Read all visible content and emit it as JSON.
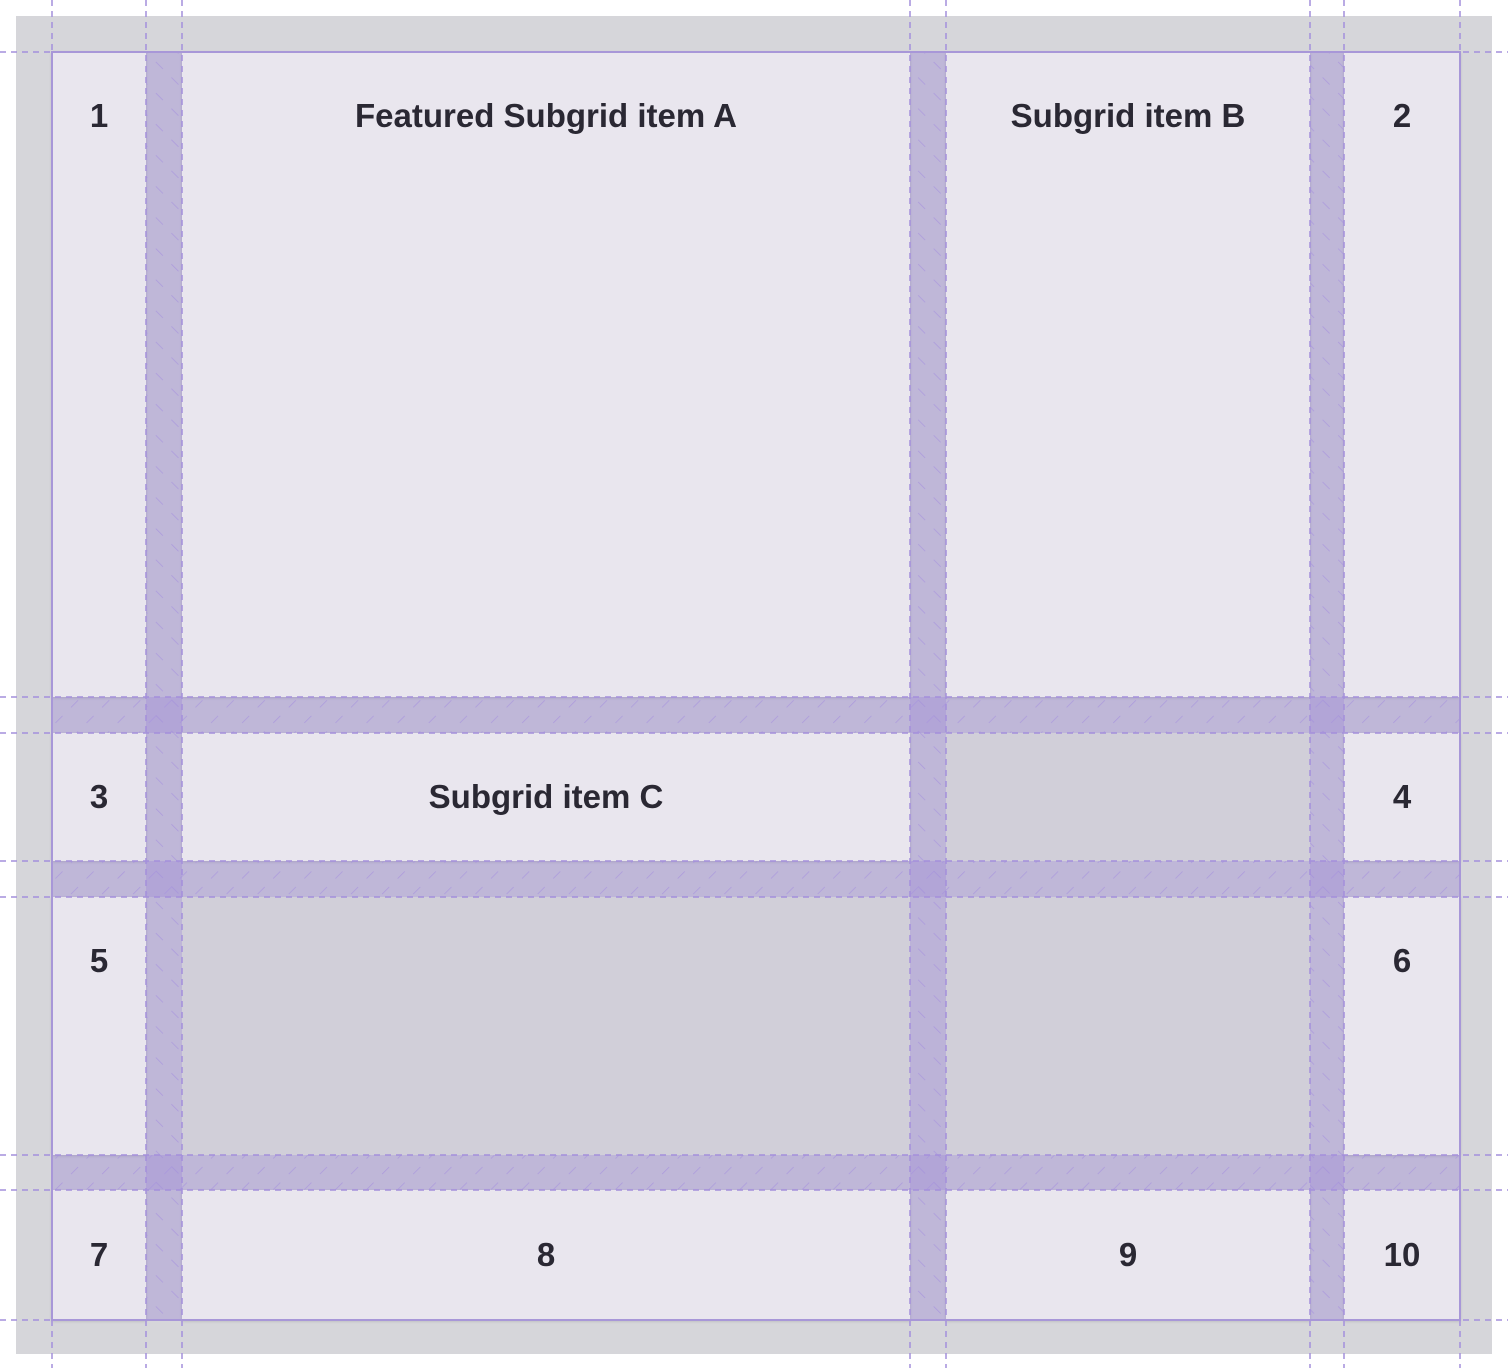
{
  "items": {
    "n1": "1",
    "a": "Featured Subgrid item A",
    "b": "Subgrid item B",
    "n2": "2",
    "n3": "3",
    "c": "Subgrid item C",
    "n4": "4",
    "n5": "5",
    "n6": "6",
    "n7": "7",
    "n8": "8",
    "n9": "9",
    "n10": "10"
  },
  "colors": {
    "background": "#d6d6da",
    "item": "#e9e6ee",
    "empty_area": "#d1cfd9",
    "grid_overlay": "#9f8fd6",
    "text": "#2a2833"
  }
}
